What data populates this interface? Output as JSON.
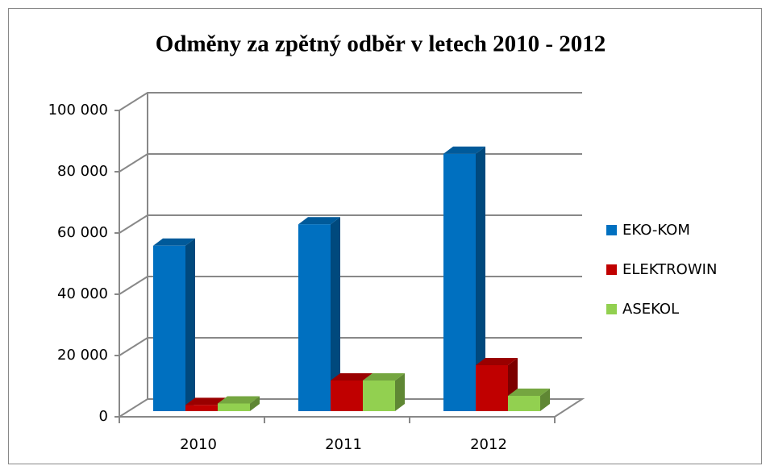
{
  "chart_data": {
    "type": "bar3d",
    "title": "Odměny za zpětný odběr v letech 2010 - 2012",
    "categories": [
      "2010",
      "2011",
      "2012"
    ],
    "series": [
      {
        "name": "EKO-KOM",
        "color": "#0070c0",
        "values": [
          54000,
          61000,
          84000
        ]
      },
      {
        "name": "ELEKTROWIN",
        "color": "#c00000",
        "values": [
          2000,
          10000,
          15000
        ]
      },
      {
        "name": "ASEKOL",
        "color": "#92d050",
        "values": [
          2500,
          10000,
          5000
        ]
      }
    ],
    "ylim": [
      0,
      100000
    ],
    "yticks": [
      0,
      {
        "value": 20000,
        "label": "20 000"
      },
      {
        "value": 40000,
        "label": "40 000"
      },
      {
        "value": 60000,
        "label": "60 000"
      },
      {
        "value": 80000,
        "label": "80 000"
      },
      {
        "value": 100000,
        "label": "100 000"
      }
    ],
    "grid": true,
    "legend": "right"
  }
}
